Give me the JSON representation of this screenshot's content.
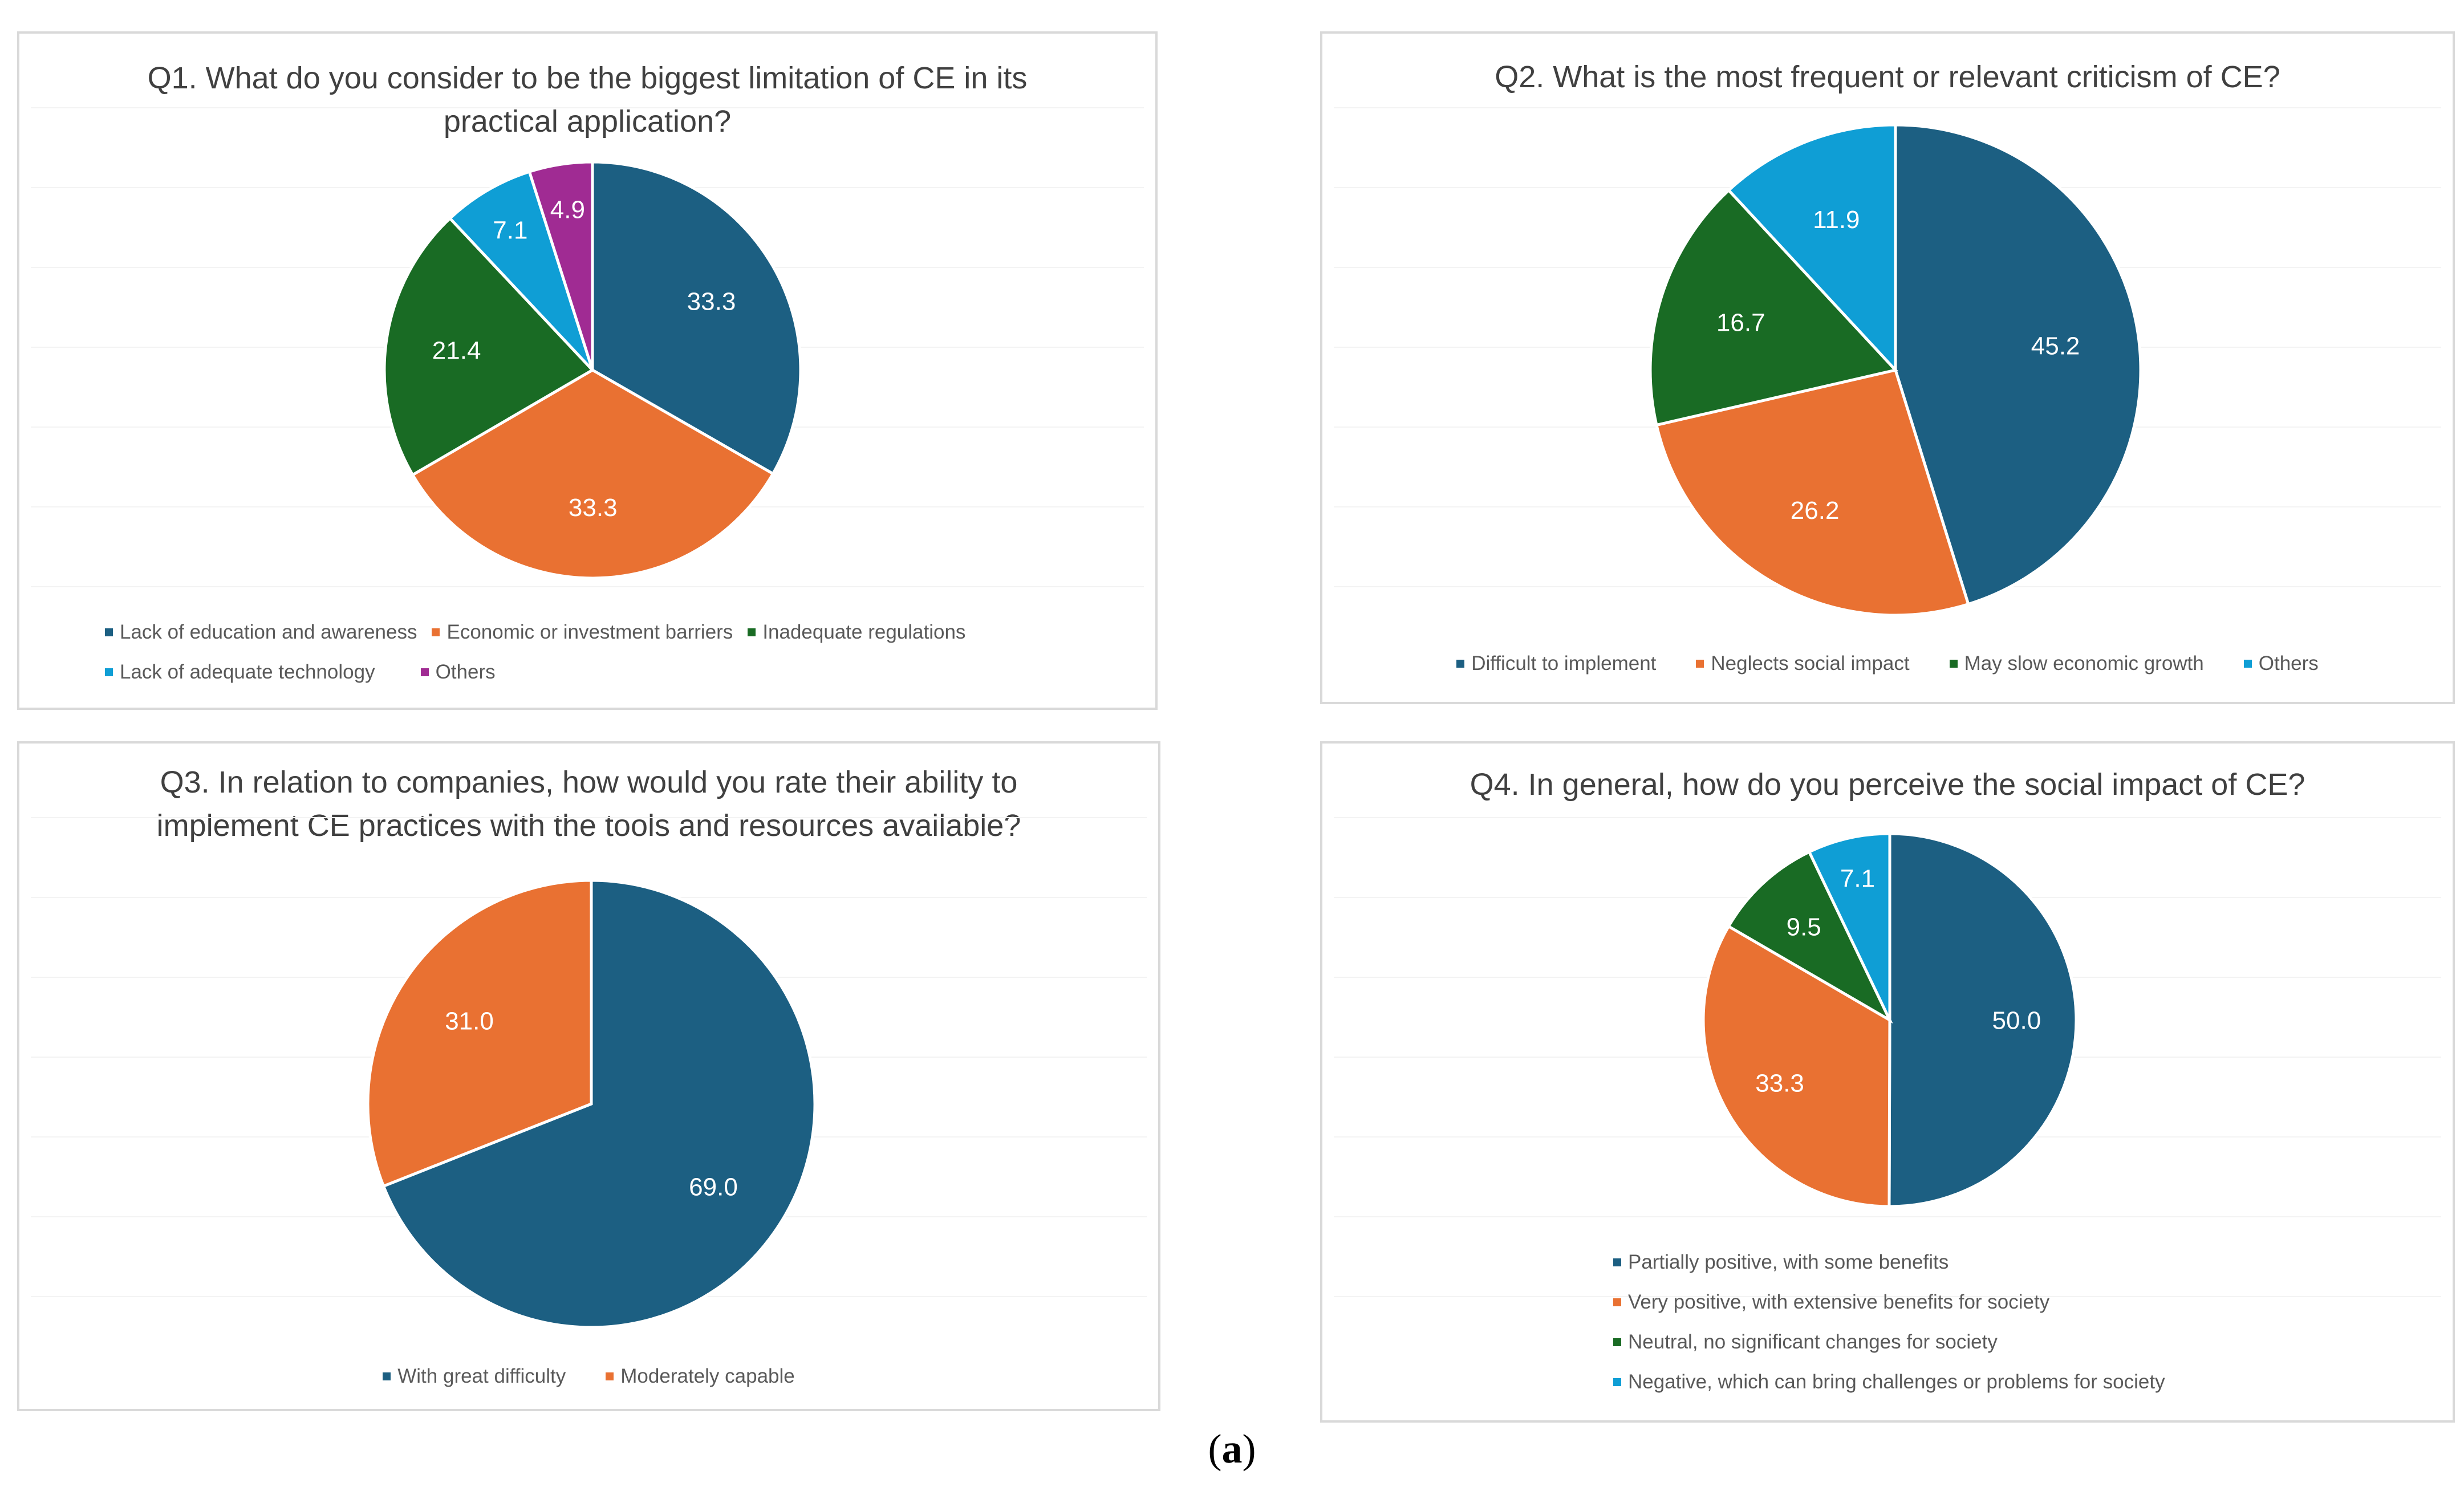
{
  "caption": {
    "open": "(",
    "letter": "a",
    "close": ")"
  },
  "colors": {
    "blue": "#1c5f82",
    "orange": "#e97132",
    "green": "#196b24",
    "cyan": "#0f9ed5",
    "purple": "#a02b93"
  },
  "chart_data": [
    {
      "type": "pie",
      "title": "Q1. What do you consider to be the biggest limitation of CE in its practical application?",
      "title_lines": [
        "Q1. What do you consider to be the biggest limitation of CE in its",
        "practical application?"
      ],
      "categories": [
        "Lack of education and awareness",
        "Economic or investment barriers",
        "Inadequate regulations",
        "Lack of adequate technology",
        "Others"
      ],
      "values": [
        33.3,
        33.3,
        21.4,
        7.1,
        4.9
      ],
      "labels": [
        "33.3",
        "33.3",
        "21.4",
        "7.1",
        "4.9"
      ],
      "colors": [
        "#1c5f82",
        "#e97132",
        "#196b24",
        "#0f9ed5",
        "#a02b93"
      ],
      "legend_position": "bottom"
    },
    {
      "type": "pie",
      "title": "Q2. What is the most frequent or relevant criticism of CE?",
      "title_lines": [
        "Q2. What is the most frequent or relevant criticism of CE?"
      ],
      "categories": [
        "Difficult to implement",
        "Neglects social impact",
        "May slow economic growth",
        "Others"
      ],
      "values": [
        45.2,
        26.2,
        16.7,
        11.9
      ],
      "labels": [
        "45.2",
        "26.2",
        "16.7",
        "11.9"
      ],
      "colors": [
        "#1c5f82",
        "#e97132",
        "#196b24",
        "#0f9ed5"
      ],
      "legend_position": "bottom"
    },
    {
      "type": "pie",
      "title": "Q3. In relation to companies, how would you rate their ability to implement CE practices with the tools and resources available?",
      "title_lines": [
        "Q3. In relation to companies, how would you rate their ability to",
        "implement CE practices with the tools and resources available?"
      ],
      "categories": [
        "With great difficulty",
        "Moderately capable"
      ],
      "values": [
        69.0,
        31.0
      ],
      "labels": [
        "69.0",
        "31.0"
      ],
      "colors": [
        "#1c5f82",
        "#e97132"
      ],
      "legend_position": "bottom"
    },
    {
      "type": "pie",
      "title": "Q4. In general, how do you perceive the social impact of CE?",
      "title_lines": [
        "Q4. In general, how do you perceive the social impact of CE?"
      ],
      "categories": [
        "Partially positive, with some benefits",
        "Very positive, with extensive benefits for society",
        "Neutral, no significant changes for society",
        "Negative, which can bring challenges or problems for society"
      ],
      "values": [
        50.0,
        33.3,
        9.5,
        7.1
      ],
      "labels": [
        "50.0",
        "33.3",
        "9.5",
        "7.1"
      ],
      "colors": [
        "#1c5f82",
        "#e97132",
        "#196b24",
        "#0f9ed5"
      ],
      "legend_position": "bottom"
    }
  ]
}
